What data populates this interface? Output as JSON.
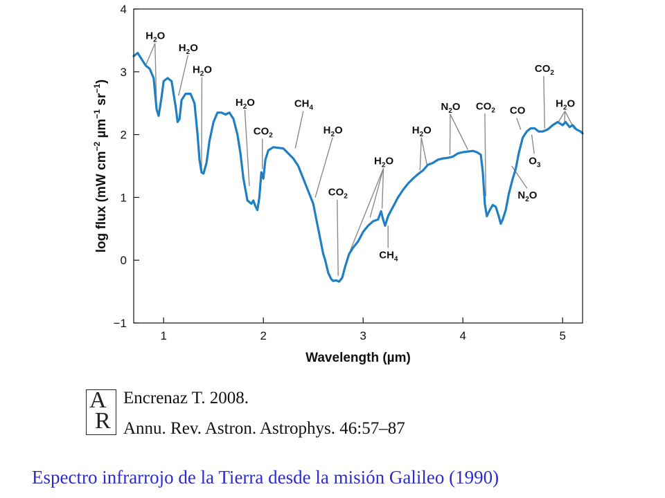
{
  "chart_data": {
    "type": "line",
    "title": "",
    "xlabel": "Wavelength (µm)",
    "ylabel_parts": [
      "log flux (mW cm",
      "−2",
      " µm",
      "−1",
      " sr",
      "−1",
      ")"
    ],
    "xlim": [
      0.7,
      5.2
    ],
    "ylim": [
      -1,
      4
    ],
    "x_ticks": [
      {
        "value": 1,
        "label": "1"
      },
      {
        "value": 2,
        "label": "2"
      },
      {
        "value": 3,
        "label": "3"
      },
      {
        "value": 4,
        "label": "4"
      },
      {
        "value": 5,
        "label": "5"
      }
    ],
    "y_ticks": [
      {
        "value": -1,
        "label": "−1"
      },
      {
        "value": 0,
        "label": "0"
      },
      {
        "value": 1,
        "label": "1"
      },
      {
        "value": 2,
        "label": "2"
      },
      {
        "value": 3,
        "label": "3"
      },
      {
        "value": 4,
        "label": "4"
      }
    ],
    "grid": false,
    "line_color": "#1f7fc2",
    "series": [
      {
        "points": [
          [
            0.7,
            3.25
          ],
          [
            0.74,
            3.3
          ],
          [
            0.78,
            3.2
          ],
          [
            0.82,
            3.1
          ],
          [
            0.86,
            3.05
          ],
          [
            0.9,
            2.9
          ],
          [
            0.93,
            2.4
          ],
          [
            0.95,
            2.3
          ],
          [
            0.98,
            2.6
          ],
          [
            1.0,
            2.85
          ],
          [
            1.04,
            2.9
          ],
          [
            1.08,
            2.85
          ],
          [
            1.12,
            2.45
          ],
          [
            1.14,
            2.2
          ],
          [
            1.16,
            2.25
          ],
          [
            1.18,
            2.55
          ],
          [
            1.22,
            2.65
          ],
          [
            1.27,
            2.65
          ],
          [
            1.31,
            2.5
          ],
          [
            1.34,
            2.0
          ],
          [
            1.36,
            1.6
          ],
          [
            1.38,
            1.4
          ],
          [
            1.4,
            1.38
          ],
          [
            1.43,
            1.55
          ],
          [
            1.46,
            1.9
          ],
          [
            1.5,
            2.2
          ],
          [
            1.54,
            2.35
          ],
          [
            1.58,
            2.35
          ],
          [
            1.62,
            2.32
          ],
          [
            1.66,
            2.35
          ],
          [
            1.7,
            2.25
          ],
          [
            1.74,
            2.0
          ],
          [
            1.77,
            1.7
          ],
          [
            1.8,
            1.3
          ],
          [
            1.84,
            0.95
          ],
          [
            1.88,
            0.9
          ],
          [
            1.9,
            0.95
          ],
          [
            1.92,
            0.86
          ],
          [
            1.94,
            0.8
          ],
          [
            1.96,
            1.0
          ],
          [
            1.98,
            1.4
          ],
          [
            2.0,
            1.3
          ],
          [
            2.02,
            1.6
          ],
          [
            2.05,
            1.75
          ],
          [
            2.1,
            1.8
          ],
          [
            2.2,
            1.78
          ],
          [
            2.3,
            1.62
          ],
          [
            2.35,
            1.5
          ],
          [
            2.4,
            1.3
          ],
          [
            2.45,
            1.1
          ],
          [
            2.5,
            0.9
          ],
          [
            2.55,
            0.5
          ],
          [
            2.6,
            0.1
          ],
          [
            2.62,
            0.0
          ],
          [
            2.65,
            -0.2
          ],
          [
            2.68,
            -0.3
          ],
          [
            2.7,
            -0.33
          ],
          [
            2.73,
            -0.32
          ],
          [
            2.76,
            -0.34
          ],
          [
            2.79,
            -0.28
          ],
          [
            2.82,
            -0.1
          ],
          [
            2.86,
            0.1
          ],
          [
            2.9,
            0.2
          ],
          [
            2.95,
            0.3
          ],
          [
            3.0,
            0.45
          ],
          [
            3.05,
            0.55
          ],
          [
            3.1,
            0.62
          ],
          [
            3.15,
            0.65
          ],
          [
            3.18,
            0.78
          ],
          [
            3.2,
            0.65
          ],
          [
            3.22,
            0.55
          ],
          [
            3.25,
            0.7
          ],
          [
            3.3,
            0.85
          ],
          [
            3.35,
            1.0
          ],
          [
            3.4,
            1.12
          ],
          [
            3.45,
            1.22
          ],
          [
            3.5,
            1.3
          ],
          [
            3.55,
            1.37
          ],
          [
            3.6,
            1.43
          ],
          [
            3.65,
            1.52
          ],
          [
            3.7,
            1.55
          ],
          [
            3.75,
            1.6
          ],
          [
            3.8,
            1.62
          ],
          [
            3.85,
            1.63
          ],
          [
            3.9,
            1.65
          ],
          [
            3.95,
            1.7
          ],
          [
            4.0,
            1.72
          ],
          [
            4.05,
            1.73
          ],
          [
            4.1,
            1.74
          ],
          [
            4.14,
            1.72
          ],
          [
            4.18,
            1.68
          ],
          [
            4.2,
            1.4
          ],
          [
            4.22,
            0.9
          ],
          [
            4.24,
            0.7
          ],
          [
            4.27,
            0.8
          ],
          [
            4.3,
            0.88
          ],
          [
            4.33,
            0.85
          ],
          [
            4.36,
            0.7
          ],
          [
            4.38,
            0.58
          ],
          [
            4.4,
            0.65
          ],
          [
            4.43,
            0.8
          ],
          [
            4.46,
            1.05
          ],
          [
            4.5,
            1.3
          ],
          [
            4.53,
            1.45
          ],
          [
            4.56,
            1.7
          ],
          [
            4.6,
            1.95
          ],
          [
            4.64,
            2.05
          ],
          [
            4.68,
            2.1
          ],
          [
            4.72,
            2.1
          ],
          [
            4.76,
            2.05
          ],
          [
            4.8,
            2.05
          ],
          [
            4.85,
            2.08
          ],
          [
            4.9,
            2.15
          ],
          [
            4.95,
            2.2
          ],
          [
            5.0,
            2.15
          ],
          [
            5.03,
            2.2
          ],
          [
            5.07,
            2.12
          ],
          [
            5.1,
            2.15
          ],
          [
            5.14,
            2.08
          ],
          [
            5.18,
            2.05
          ],
          [
            5.2,
            2.02
          ]
        ]
      }
    ],
    "annotations": [
      {
        "main": "H",
        "sub": "2",
        "tail": "O",
        "label_x": 0.82,
        "label_y": 3.52,
        "targets": [
          [
            0.82,
            3.1
          ],
          [
            0.93,
            2.4
          ]
        ]
      },
      {
        "main": "H",
        "sub": "2",
        "tail": "O",
        "label_x": 1.15,
        "label_y": 3.33,
        "targets": [
          [
            1.15,
            2.62
          ]
        ]
      },
      {
        "main": "H",
        "sub": "2",
        "tail": "O",
        "label_x": 1.29,
        "label_y": 2.98,
        "targets": [
          [
            1.38,
            1.42
          ]
        ]
      },
      {
        "main": "H",
        "sub": "2",
        "tail": "O",
        "label_x": 1.72,
        "label_y": 2.46,
        "targets": [
          [
            1.86,
            1.18
          ]
        ]
      },
      {
        "main": "CO",
        "sub": "2",
        "tail": "",
        "label_x": 1.9,
        "label_y": 2.0,
        "targets": [
          [
            1.99,
            1.45
          ]
        ]
      },
      {
        "main": "CH",
        "sub": "4",
        "tail": "",
        "label_x": 2.31,
        "label_y": 2.44,
        "targets": [
          [
            2.32,
            1.78
          ]
        ]
      },
      {
        "main": "H",
        "sub": "2",
        "tail": "O",
        "label_x": 2.6,
        "label_y": 2.02,
        "targets": [
          [
            2.52,
            1.0
          ]
        ]
      },
      {
        "main": "CO",
        "sub": "2",
        "tail": "",
        "label_x": 2.65,
        "label_y": 1.03,
        "targets": [
          [
            2.75,
            -0.25
          ]
        ]
      },
      {
        "main": "H",
        "sub": "2",
        "tail": "O",
        "label_x": 3.11,
        "label_y": 1.53,
        "targets": [
          [
            2.87,
            0.15
          ],
          [
            3.07,
            0.68
          ],
          [
            3.19,
            0.82
          ]
        ]
      },
      {
        "main": "CH",
        "sub": "4",
        "tail": "",
        "label_x": 3.16,
        "label_y": 0.03,
        "targets": [
          [
            3.25,
            0.55
          ]
        ]
      },
      {
        "main": "H",
        "sub": "2",
        "tail": "O",
        "label_x": 3.49,
        "label_y": 2.02,
        "targets": [
          [
            3.57,
            1.43
          ],
          [
            3.64,
            1.52
          ]
        ]
      },
      {
        "main": "N",
        "sub": "2",
        "tail": "O",
        "label_x": 3.78,
        "label_y": 2.39,
        "targets": [
          [
            3.87,
            1.68
          ],
          [
            4.05,
            1.76
          ]
        ]
      },
      {
        "main": "CO",
        "sub": "2",
        "tail": "",
        "label_x": 4.13,
        "label_y": 2.4,
        "targets": [
          [
            4.23,
            1.02
          ]
        ]
      },
      {
        "main": "CO",
        "sub": "",
        "tail": "",
        "label_x": 4.47,
        "label_y": 2.33,
        "targets": [
          [
            4.58,
            2.08
          ]
        ]
      },
      {
        "main": "O",
        "sub": "3",
        "tail": "",
        "label_x": 4.66,
        "label_y": 1.53,
        "targets": [
          [
            4.69,
            2.0
          ]
        ]
      },
      {
        "main": "N",
        "sub": "2",
        "tail": "O",
        "label_x": 4.55,
        "label_y": 0.98,
        "targets": [
          [
            4.49,
            1.5
          ]
        ]
      },
      {
        "main": "CO",
        "sub": "2",
        "tail": "",
        "label_x": 4.72,
        "label_y": 3.0,
        "targets": [
          [
            4.82,
            2.1
          ]
        ]
      },
      {
        "main": "H",
        "sub": "2",
        "tail": "O",
        "label_x": 4.93,
        "label_y": 2.44,
        "targets": [
          [
            4.95,
            2.18
          ],
          [
            5.02,
            2.2
          ],
          [
            5.12,
            2.08
          ]
        ]
      }
    ]
  },
  "citation": {
    "logo_letters": "AR",
    "line1": "Encrenaz T. 2008.",
    "line2": "Annu. Rev. Astron. Astrophys. 46:57–87"
  },
  "caption": "Espectro infrarrojo de la Tierra desde la misión Galileo (1990)"
}
